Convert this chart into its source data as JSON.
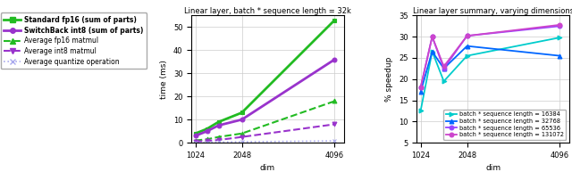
{
  "dims": [
    1024,
    1280,
    1536,
    2048,
    4096
  ],
  "legend_entries": [
    {
      "label": "Standard fp16 (sum of parts)",
      "color": "#22bb22",
      "lw": 2.0,
      "ls": "-",
      "marker": "s",
      "bold": true
    },
    {
      "label": "SwitchBack int8 (sum of parts)",
      "color": "#9933cc",
      "lw": 2.0,
      "ls": "-",
      "marker": "o",
      "bold": true
    },
    {
      "label": "Average fp16 matmul",
      "color": "#22bb22",
      "lw": 1.5,
      "ls": "--",
      "marker": "^",
      "bold": false
    },
    {
      "label": "Average int8 matmul",
      "color": "#9933cc",
      "lw": 1.5,
      "ls": "--",
      "marker": "v",
      "bold": false
    },
    {
      "label": "Average quantize operation",
      "color": "#aaaaee",
      "lw": 1.2,
      "ls": ":",
      "marker": "x",
      "bold": false
    }
  ],
  "time_data": {
    "standard_fp16": [
      4.0,
      6.0,
      9.0,
      13.0,
      53.0
    ],
    "switchback_int8": [
      3.0,
      5.0,
      7.5,
      10.0,
      36.0
    ],
    "avg_fp16_matmul": [
      1.0,
      1.5,
      2.5,
      4.0,
      18.0
    ],
    "avg_int8_matmul": [
      0.5,
      0.8,
      1.2,
      2.5,
      8.0
    ],
    "avg_quantize": [
      0.1,
      0.2,
      0.3,
      0.4,
      0.8
    ]
  },
  "speedup_dims": [
    1024,
    1280,
    1536,
    2048,
    4096
  ],
  "speedup_data": {
    "16384": [
      12.5,
      26.5,
      19.5,
      25.5,
      29.8
    ],
    "32768": [
      17.0,
      26.5,
      22.5,
      27.8,
      25.5
    ],
    "65536": [
      18.0,
      30.0,
      22.5,
      30.2,
      32.5
    ],
    "131072": [
      18.0,
      30.0,
      23.0,
      30.2,
      32.8
    ]
  },
  "speedup_colors": {
    "16384": "#00cccc",
    "32768": "#0066ff",
    "65536": "#9944ff",
    "131072": "#cc44cc"
  },
  "speedup_markers": {
    "16384": ">",
    "32768": "^",
    "65536": "o",
    "131072": "o"
  },
  "title_middle": "Linear layer, batch * sequence length = 32k",
  "title_right": "Linear layer summary, varying dimensions",
  "ylabel_middle": "time (ms)",
  "ylabel_right": "% speedup",
  "xlabel": "dim",
  "ylim_middle": [
    0,
    55
  ],
  "ylim_right": [
    5,
    35
  ],
  "yticks_middle": [
    0,
    10,
    20,
    30,
    40,
    50
  ],
  "yticks_right": [
    5,
    10,
    15,
    20,
    25,
    30,
    35
  ]
}
